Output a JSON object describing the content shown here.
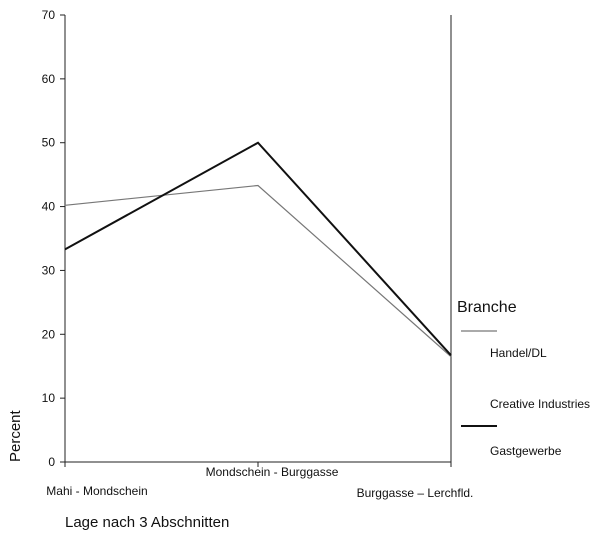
{
  "chart_data": {
    "type": "line",
    "categories": [
      "Mahi - Mondschein",
      "Mondschein - Burggasse",
      "Burggasse – Lerchfld."
    ],
    "xlabel": "Lage nach 3 Abschnitten",
    "ylabel": "Percent",
    "ylim": [
      0,
      70
    ],
    "yticks": [
      "0",
      "10",
      "20",
      "30",
      "40",
      "50",
      "60",
      "70"
    ],
    "grid": false,
    "legend": {
      "title": "Branche",
      "placement": "right",
      "entries": [
        "Handel/DL",
        "Creative Industries",
        "Gastgewerbe"
      ]
    },
    "series": [
      {
        "name": "Handel/DL",
        "values": [
          40.2,
          43.3,
          16.5
        ],
        "color": "#777777"
      },
      {
        "name": "Creative Industries",
        "values": [
          null,
          null,
          null
        ],
        "color": "#ffffff"
      },
      {
        "name": "Gastgewerbe",
        "values": [
          33.3,
          50.0,
          16.7
        ],
        "color": "#111111"
      }
    ]
  }
}
